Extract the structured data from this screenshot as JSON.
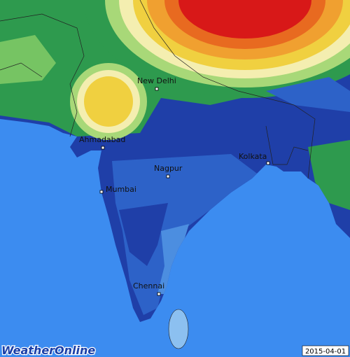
{
  "map": {
    "cities": [
      {
        "name": "New Delhi"
      },
      {
        "name": "Ahmadabad"
      },
      {
        "name": "Kolkata"
      },
      {
        "name": "Nagpur"
      },
      {
        "name": "Mumbai"
      },
      {
        "name": "Chennai"
      }
    ],
    "logo": "WeatherOnline",
    "date": "2015-04-01"
  }
}
